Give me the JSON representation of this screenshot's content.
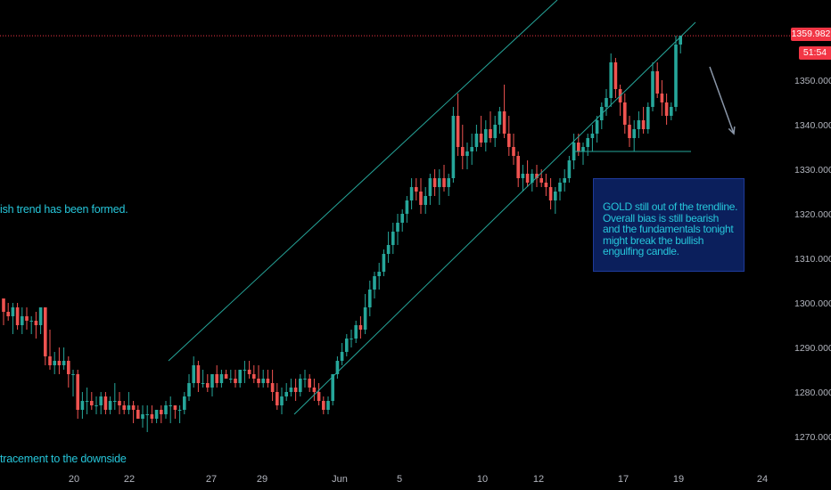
{
  "chart": {
    "symbol": "GOLD",
    "colors": {
      "background": "#000000",
      "up": "#26a69a",
      "down": "#ef5350",
      "channel": "#26a69a",
      "arrow": "#8a96a8",
      "price_line": "#f23645",
      "note_text": "#26c6da",
      "annotation_bg": "#0b1f5c"
    }
  },
  "notes": {
    "top": "ish trend has been formed.",
    "bottom": "tracement to the downside"
  },
  "annotation": {
    "text": "GOLD still out of the trendline. Overall bias is still bearish and the fundamentals tonight might break the bullish engulfing candle."
  },
  "price_scale": {
    "last_price": "1359.982",
    "countdown": "51:54"
  },
  "chart_data": {
    "type": "candlestick",
    "title": "",
    "xlabel": "",
    "ylabel": "",
    "ylim": [
      1265,
      1365
    ],
    "grid": false,
    "y_ticks": [
      "1270.000",
      "1280.000",
      "1290.000",
      "1300.000",
      "1310.000",
      "1320.000",
      "1330.000",
      "1340.000",
      "1350.000"
    ],
    "x_ticks": [
      "20",
      "22",
      "27",
      "29",
      "Jun",
      "5",
      "10",
      "12",
      "17",
      "19",
      "24"
    ],
    "last_price": 1359.982,
    "series": [
      {
        "candles": [
          [
            1301,
            1301,
            1295,
            1298
          ],
          [
            1298,
            1300,
            1296,
            1297
          ],
          [
            1297,
            1300,
            1293,
            1299
          ],
          [
            1299,
            1300,
            1294,
            1295
          ],
          [
            1295,
            1299,
            1293,
            1297
          ],
          [
            1297,
            1299,
            1294,
            1296
          ],
          [
            1296,
            1297,
            1293,
            1296
          ],
          [
            1296,
            1298,
            1292,
            1295
          ],
          [
            1295,
            1299,
            1293,
            1299
          ],
          [
            1299,
            1299,
            1286,
            1288
          ],
          [
            1288,
            1294,
            1285,
            1286
          ],
          [
            1286,
            1289,
            1284,
            1287
          ],
          [
            1287,
            1290,
            1284,
            1286
          ],
          [
            1286,
            1290,
            1285,
            1287
          ],
          [
            1287,
            1288,
            1281,
            1284
          ],
          [
            1284,
            1285,
            1279,
            1284
          ],
          [
            1284,
            1285,
            1274,
            1276
          ],
          [
            1276,
            1280,
            1274,
            1278
          ],
          [
            1278,
            1281,
            1275,
            1278
          ],
          [
            1278,
            1280,
            1276,
            1277
          ],
          [
            1277,
            1279,
            1275,
            1277
          ],
          [
            1277,
            1280,
            1275,
            1279
          ],
          [
            1279,
            1280,
            1275,
            1276
          ],
          [
            1276,
            1279,
            1275,
            1278
          ],
          [
            1278,
            1282,
            1276,
            1278
          ],
          [
            1278,
            1280,
            1275,
            1277
          ],
          [
            1277,
            1278,
            1275,
            1276
          ],
          [
            1276,
            1280,
            1275,
            1277
          ],
          [
            1277,
            1278,
            1273,
            1276
          ],
          [
            1276,
            1277,
            1274,
            1274
          ],
          [
            1274,
            1277,
            1272,
            1275
          ],
          [
            1275,
            1277,
            1271,
            1275
          ],
          [
            1275,
            1277,
            1273,
            1274
          ],
          [
            1274,
            1276,
            1273,
            1276
          ],
          [
            1276,
            1277,
            1273,
            1275
          ],
          [
            1275,
            1278,
            1274,
            1277
          ],
          [
            1277,
            1279,
            1273,
            1277
          ],
          [
            1277,
            1277,
            1274,
            1276
          ],
          [
            1276,
            1277,
            1273,
            1276
          ],
          [
            1276,
            1280,
            1275,
            1279
          ],
          [
            1279,
            1284,
            1278,
            1282
          ],
          [
            1282,
            1288,
            1281,
            1286
          ],
          [
            1286,
            1287,
            1280,
            1282
          ],
          [
            1282,
            1285,
            1281,
            1282
          ],
          [
            1282,
            1284,
            1280,
            1281
          ],
          [
            1281,
            1284,
            1279,
            1284
          ],
          [
            1284,
            1286,
            1281,
            1282
          ],
          [
            1282,
            1285,
            1281,
            1284
          ],
          [
            1284,
            1285,
            1283,
            1283
          ],
          [
            1283,
            1285,
            1282,
            1283
          ],
          [
            1283,
            1285,
            1281,
            1282
          ],
          [
            1282,
            1285,
            1281,
            1285
          ],
          [
            1285,
            1287,
            1282,
            1285
          ],
          [
            1285,
            1287,
            1283,
            1284
          ],
          [
            1284,
            1286,
            1282,
            1283
          ],
          [
            1283,
            1286,
            1281,
            1282
          ],
          [
            1282,
            1285,
            1281,
            1283
          ],
          [
            1283,
            1285,
            1281,
            1282
          ],
          [
            1282,
            1285,
            1278,
            1280
          ],
          [
            1280,
            1282,
            1276,
            1277
          ],
          [
            1277,
            1281,
            1275,
            1279
          ],
          [
            1279,
            1282,
            1278,
            1280
          ],
          [
            1280,
            1283,
            1279,
            1281
          ],
          [
            1281,
            1283,
            1278,
            1280
          ],
          [
            1280,
            1284,
            1279,
            1283
          ],
          [
            1283,
            1285,
            1281,
            1283
          ],
          [
            1283,
            1284,
            1280,
            1281
          ],
          [
            1281,
            1283,
            1278,
            1280
          ],
          [
            1280,
            1282,
            1277,
            1278
          ],
          [
            1278,
            1279,
            1275,
            1276
          ],
          [
            1276,
            1279,
            1275,
            1278
          ],
          [
            1278,
            1284,
            1277,
            1284
          ],
          [
            1284,
            1288,
            1283,
            1287
          ],
          [
            1287,
            1291,
            1286,
            1289
          ],
          [
            1289,
            1293,
            1288,
            1292
          ],
          [
            1292,
            1294,
            1290,
            1292
          ],
          [
            1292,
            1296,
            1291,
            1295
          ],
          [
            1295,
            1297,
            1292,
            1294
          ],
          [
            1294,
            1302,
            1293,
            1299
          ],
          [
            1299,
            1305,
            1297,
            1303
          ],
          [
            1303,
            1307,
            1301,
            1306
          ],
          [
            1306,
            1309,
            1303,
            1307
          ],
          [
            1307,
            1312,
            1306,
            1311
          ],
          [
            1311,
            1316,
            1309,
            1313
          ],
          [
            1313,
            1318,
            1311,
            1316
          ],
          [
            1316,
            1320,
            1313,
            1318
          ],
          [
            1318,
            1321,
            1316,
            1320
          ],
          [
            1320,
            1324,
            1318,
            1323
          ],
          [
            1323,
            1328,
            1321,
            1326
          ],
          [
            1326,
            1328,
            1323,
            1325
          ],
          [
            1325,
            1328,
            1320,
            1322
          ],
          [
            1322,
            1326,
            1320,
            1324
          ],
          [
            1324,
            1329,
            1322,
            1328
          ],
          [
            1328,
            1330,
            1324,
            1326
          ],
          [
            1326,
            1330,
            1322,
            1328
          ],
          [
            1328,
            1331,
            1325,
            1326
          ],
          [
            1326,
            1329,
            1324,
            1328
          ],
          [
            1328,
            1344,
            1327,
            1342
          ],
          [
            1342,
            1347,
            1333,
            1335
          ],
          [
            1335,
            1340,
            1330,
            1333
          ],
          [
            1333,
            1336,
            1330,
            1334
          ],
          [
            1334,
            1338,
            1331,
            1335
          ],
          [
            1335,
            1340,
            1334,
            1338
          ],
          [
            1338,
            1342,
            1335,
            1336
          ],
          [
            1336,
            1341,
            1334,
            1339
          ],
          [
            1339,
            1343,
            1336,
            1337
          ],
          [
            1337,
            1342,
            1335,
            1340
          ],
          [
            1340,
            1344,
            1338,
            1343
          ],
          [
            1343,
            1349,
            1337,
            1338
          ],
          [
            1338,
            1342,
            1333,
            1335
          ],
          [
            1335,
            1338,
            1331,
            1333
          ],
          [
            1333,
            1334,
            1326,
            1328
          ],
          [
            1328,
            1331,
            1325,
            1329
          ],
          [
            1329,
            1332,
            1326,
            1327
          ],
          [
            1327,
            1330,
            1325,
            1329
          ],
          [
            1329,
            1331,
            1326,
            1328
          ],
          [
            1328,
            1330,
            1326,
            1327
          ],
          [
            1327,
            1329,
            1324,
            1326
          ],
          [
            1326,
            1328,
            1321,
            1323
          ],
          [
            1323,
            1326,
            1320,
            1325
          ],
          [
            1325,
            1328,
            1323,
            1327
          ],
          [
            1327,
            1330,
            1325,
            1328
          ],
          [
            1328,
            1333,
            1327,
            1332
          ],
          [
            1332,
            1338,
            1330,
            1336
          ],
          [
            1336,
            1338,
            1333,
            1334
          ],
          [
            1334,
            1336,
            1331,
            1335
          ],
          [
            1335,
            1338,
            1333,
            1337
          ],
          [
            1337,
            1340,
            1334,
            1338
          ],
          [
            1338,
            1342,
            1336,
            1341
          ],
          [
            1341,
            1345,
            1339,
            1344
          ],
          [
            1344,
            1348,
            1342,
            1346
          ],
          [
            1346,
            1356,
            1344,
            1354
          ],
          [
            1354,
            1355,
            1346,
            1348
          ],
          [
            1348,
            1349,
            1342,
            1345
          ],
          [
            1345,
            1347,
            1338,
            1340
          ],
          [
            1340,
            1342,
            1335,
            1337
          ],
          [
            1337,
            1341,
            1334,
            1339
          ],
          [
            1339,
            1343,
            1337,
            1341
          ],
          [
            1341,
            1344,
            1338,
            1339
          ],
          [
            1339,
            1345,
            1338,
            1344
          ],
          [
            1344,
            1354,
            1343,
            1352
          ],
          [
            1352,
            1354,
            1346,
            1347
          ],
          [
            1347,
            1350,
            1342,
            1345
          ],
          [
            1345,
            1347,
            1340,
            1342
          ],
          [
            1342,
            1345,
            1341,
            1344
          ],
          [
            1344,
            1360,
            1343,
            1358
          ],
          [
            1358,
            1360,
            1356,
            1359.982
          ]
        ]
      }
    ],
    "annotations": {
      "upper_channel": [
        [
          189,
          1287
        ],
        [
          625,
          1368
        ]
      ],
      "lower_channel": [
        [
          330,
          1275
        ],
        [
          780,
          1363
        ]
      ],
      "support_line": [
        [
          645,
          1334
        ],
        [
          775,
          1334
        ]
      ],
      "arrow": [
        [
          796,
          1353
        ],
        [
          823,
          1338
        ]
      ]
    }
  }
}
